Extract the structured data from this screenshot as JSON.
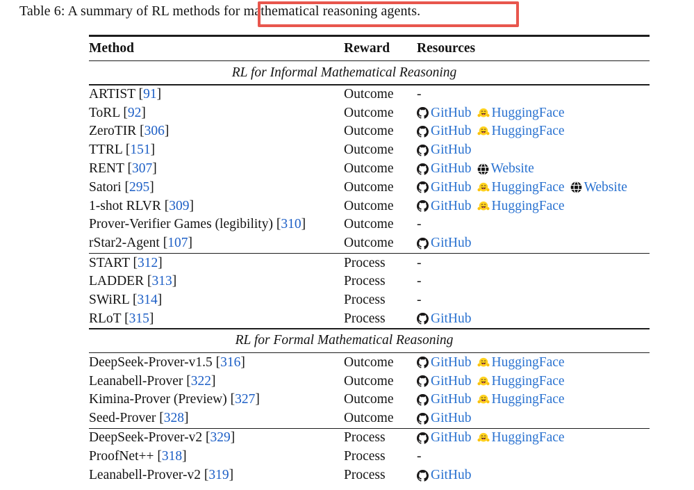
{
  "caption": {
    "text": "Table 6: A summary of RL methods for mathematical reasoning agents."
  },
  "colors": {
    "link": "#2a72d0",
    "cite": "#1d5fc6",
    "annotation": "#e8564d",
    "rule": "#1c1c1c"
  },
  "icons": {
    "github": "github-octocat-icon",
    "huggingface": "huggingface-emoji-icon",
    "website": "globe-icon"
  },
  "table": {
    "headers": [
      "Method",
      "Reward",
      "Resources"
    ],
    "punct": {
      "open": "[",
      "close": "]"
    },
    "dash": "-",
    "resource_labels": {
      "github": "GitHub",
      "huggingface": "HuggingFace",
      "website": "Website"
    },
    "sections": [
      {
        "title": "RL for Informal Mathematical Reasoning",
        "groups": [
          [
            {
              "method": "ARTIST",
              "cite": "91",
              "reward": "Outcome",
              "resources": []
            },
            {
              "method": "ToRL",
              "cite": "92",
              "reward": "Outcome",
              "resources": [
                "github",
                "huggingface"
              ]
            },
            {
              "method": "ZeroTIR",
              "cite": "306",
              "reward": "Outcome",
              "resources": [
                "github",
                "huggingface"
              ]
            },
            {
              "method": "TTRL",
              "cite": "151",
              "reward": "Outcome",
              "resources": [
                "github"
              ]
            },
            {
              "method": "RENT",
              "cite": "307",
              "reward": "Outcome",
              "resources": [
                "github",
                "website"
              ]
            },
            {
              "method": "Satori",
              "cite": "295",
              "reward": "Outcome",
              "resources": [
                "github",
                "huggingface",
                "website"
              ]
            },
            {
              "method": "1-shot RLVR",
              "cite": "309",
              "reward": "Outcome",
              "resources": [
                "github",
                "huggingface"
              ]
            },
            {
              "method": "Prover-Verifier Games (legibility)",
              "cite": "310",
              "reward": "Outcome",
              "resources": []
            },
            {
              "method": "rStar2-Agent",
              "cite": "107",
              "reward": "Outcome",
              "resources": [
                "github"
              ]
            }
          ],
          [
            {
              "method": "START",
              "cite": "312",
              "reward": "Process",
              "resources": []
            },
            {
              "method": "LADDER",
              "cite": "313",
              "reward": "Process",
              "resources": []
            },
            {
              "method": "SWiRL",
              "cite": "314",
              "reward": "Process",
              "resources": []
            },
            {
              "method": "RLoT",
              "cite": "315",
              "reward": "Process",
              "resources": [
                "github"
              ]
            }
          ]
        ]
      },
      {
        "title": "RL for Formal Mathematical Reasoning",
        "groups": [
          [
            {
              "method": "DeepSeek-Prover-v1.5",
              "cite": "316",
              "reward": "Outcome",
              "resources": [
                "github",
                "huggingface"
              ]
            },
            {
              "method": "Leanabell-Prover",
              "cite": "322",
              "reward": "Outcome",
              "resources": [
                "github",
                "huggingface"
              ]
            },
            {
              "method": "Kimina-Prover (Preview)",
              "cite": "327",
              "reward": "Outcome",
              "resources": [
                "github",
                "huggingface"
              ]
            },
            {
              "method": "Seed-Prover",
              "cite": "328",
              "reward": "Outcome",
              "resources": [
                "github"
              ]
            }
          ],
          [
            {
              "method": "DeepSeek-Prover-v2",
              "cite": "329",
              "reward": "Process",
              "resources": [
                "github",
                "huggingface"
              ]
            },
            {
              "method": "ProofNet++",
              "cite": "318",
              "reward": "Process",
              "resources": []
            },
            {
              "method": "Leanabell-Prover-v2",
              "cite": "319",
              "reward": "Process",
              "resources": [
                "github"
              ]
            }
          ]
        ]
      }
    ]
  }
}
